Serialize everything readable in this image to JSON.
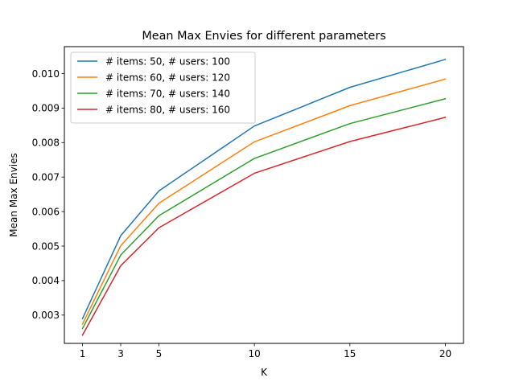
{
  "chart_data": {
    "type": "line",
    "title": "Mean Max Envies for different parameters",
    "xlabel": "K",
    "ylabel": "Mean Max Envies",
    "x": [
      1,
      3,
      5,
      10,
      15,
      20
    ],
    "xticks": [
      "1",
      "3",
      "5",
      "10",
      "15",
      "20"
    ],
    "yticks": [
      "0.003",
      "0.004",
      "0.005",
      "0.006",
      "0.007",
      "0.008",
      "0.009",
      "0.010"
    ],
    "xlim": [
      0.05,
      20.95
    ],
    "ylim": [
      0.00218,
      0.01078
    ],
    "grid": false,
    "legend_position": "top-left",
    "series": [
      {
        "name": "# items: 50, # users: 100",
        "color": "#1f77b4",
        "values": [
          0.0029,
          0.0053,
          0.0066,
          0.00848,
          0.0096,
          0.01041
        ]
      },
      {
        "name": "# items: 60, # users: 120",
        "color": "#ff7f0e",
        "values": [
          0.00274,
          0.00501,
          0.00624,
          0.00802,
          0.00907,
          0.00984
        ]
      },
      {
        "name": "# items: 70, # users: 140",
        "color": "#2ca02c",
        "values": [
          0.00261,
          0.00474,
          0.00588,
          0.00754,
          0.00855,
          0.00927
        ]
      },
      {
        "name": "# items: 80, # users: 160",
        "color": "#d62728",
        "values": [
          0.00242,
          0.00443,
          0.00553,
          0.00711,
          0.00803,
          0.00873
        ]
      }
    ]
  }
}
